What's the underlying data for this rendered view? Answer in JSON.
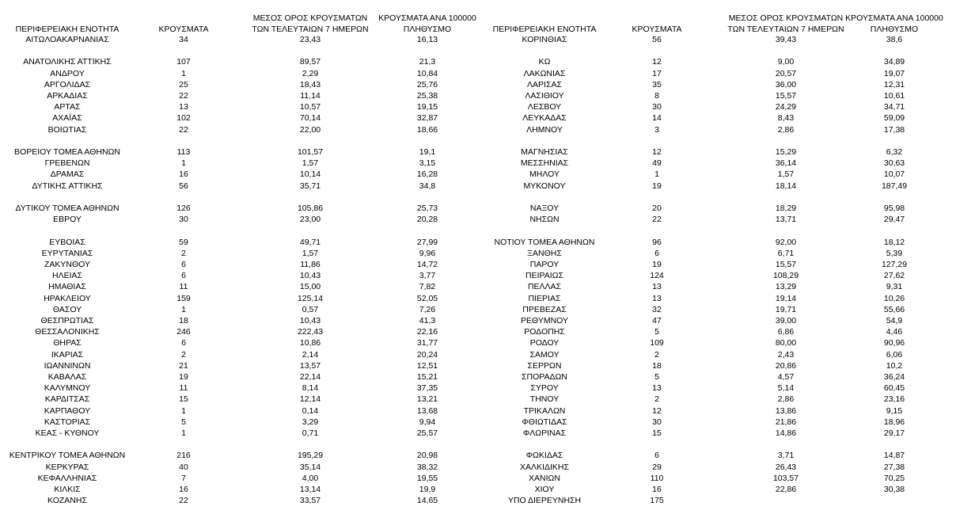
{
  "table": {
    "headers": {
      "left": [
        [
          "ΠΕΡΙΦΕΡΕΙΑΚΗ ΕΝΟΤΗΤΑ"
        ],
        [
          "ΚΡΟΥΣΜΑΤΑ"
        ],
        [
          "ΜΕΣΟΣ ΟΡΟΣ ΚΡΟΥΣΜΑΤΩΝ",
          "ΤΩΝ ΤΕΛΕΥΤΑΙΩΝ 7 ΗΜΕΡΩΝ"
        ],
        [
          "ΚΡΟΥΣΜΑΤΑ ΑΝΑ 100000",
          "ΠΛΗΘΥΣΜΟ"
        ]
      ],
      "right": [
        [
          "ΠΕΡΙΦΕΡΕΙΑΚΗ ΕΝΟΤΗΤΑ"
        ],
        [
          "ΚΡΟΥΣΜΑΤΑ"
        ],
        [
          "ΜΕΣΟΣ ΟΡΟΣ ΚΡΟΥΣΜΑΤΩΝ",
          "ΤΩΝ ΤΕΛΕΥΤΑΙΩΝ 7 ΗΜΕΡΩΝ"
        ],
        [
          "ΚΡΟΥΣΜΑΤΑ ΑΝΑ 100000",
          "ΠΛΗΘΥΣΜΟ"
        ]
      ]
    },
    "groups": [
      [
        {
          "left": [
            "ΑΙΤΩΛΟΑΚΑΡΝΑΝΙΑΣ",
            "34",
            "23,43",
            "16,13"
          ],
          "right": [
            "ΚΟΡΙΝΘΙΑΣ",
            "56",
            "39,43",
            "38,6"
          ]
        }
      ],
      [
        {
          "left": [
            "ΑΝΑΤΟΛΙΚΗΣ ΑΤΤΙΚΗΣ",
            "107",
            "89,57",
            "21,3"
          ],
          "right": [
            "ΚΩ",
            "12",
            "9,00",
            "34,89"
          ]
        },
        {
          "left": [
            "ΑΝΔΡΟΥ",
            "1",
            "2,29",
            "10,84"
          ],
          "right": [
            "ΛΑΚΩΝΙΑΣ",
            "17",
            "20,57",
            "19,07"
          ]
        },
        {
          "left": [
            "ΑΡΓΟΛΙΔΑΣ",
            "25",
            "18,43",
            "25,76"
          ],
          "right": [
            "ΛΑΡΙΣΑΣ",
            "35",
            "36,00",
            "12,31"
          ]
        },
        {
          "left": [
            "ΑΡΚΑΔΙΑΣ",
            "22",
            "11,14",
            "25,38"
          ],
          "right": [
            "ΛΑΣΙΘΙΟΥ",
            "8",
            "15,57",
            "10,61"
          ]
        },
        {
          "left": [
            "ΑΡΤΑΣ",
            "13",
            "10,57",
            "19,15"
          ],
          "right": [
            "ΛΕΣΒΟΥ",
            "30",
            "24,29",
            "34,71"
          ]
        },
        {
          "left": [
            "ΑΧΑΪΑΣ",
            "102",
            "70,14",
            "32,87"
          ],
          "right": [
            "ΛΕΥΚΑΔΑΣ",
            "14",
            "8,43",
            "59,09"
          ]
        },
        {
          "left": [
            "ΒΟΙΩΤΙΑΣ",
            "22",
            "22,00",
            "18,66"
          ],
          "right": [
            "ΛΗΜΝΟΥ",
            "3",
            "2,86",
            "17,38"
          ]
        }
      ],
      [
        {
          "left": [
            "ΒΟΡΕΙΟΥ ΤΟΜΕΑ ΑΘΗΝΩΝ",
            "113",
            "101,57",
            "19,1"
          ],
          "right": [
            "ΜΑΓΝΗΣΙΑΣ",
            "12",
            "15,29",
            "6,32"
          ]
        },
        {
          "left": [
            "ΓΡΕΒΕΝΩΝ",
            "1",
            "1,57",
            "3,15"
          ],
          "right": [
            "ΜΕΣΣΗΝΙΑΣ",
            "49",
            "36,14",
            "30,63"
          ]
        },
        {
          "left": [
            "ΔΡΑΜΑΣ",
            "16",
            "10,14",
            "16,28"
          ],
          "right": [
            "ΜΗΛΟΥ",
            "1",
            "1,57",
            "10,07"
          ]
        },
        {
          "left": [
            "ΔΥΤΙΚΗΣ ΑΤΤΙΚΗΣ",
            "56",
            "35,71",
            "34,8"
          ],
          "right": [
            "ΜΥΚΟΝΟΥ",
            "19",
            "18,14",
            "187,49"
          ]
        }
      ],
      [
        {
          "left": [
            "ΔΥΤΙΚΟΥ ΤΟΜΕΑ ΑΘΗΝΩΝ",
            "126",
            "105,86",
            "25,73"
          ],
          "right": [
            "ΝΑΞΟΥ",
            "20",
            "18,29",
            "95,98"
          ]
        },
        {
          "left": [
            "ΕΒΡΟΥ",
            "30",
            "23,00",
            "20,28"
          ],
          "right": [
            "ΝΗΣΩΝ",
            "22",
            "13,71",
            "29,47"
          ]
        }
      ],
      [
        {
          "left": [
            "ΕΥΒΟΙΑΣ",
            "59",
            "49,71",
            "27,99"
          ],
          "right": [
            "ΝΟΤΙΟΥ ΤΟΜΕΑ ΑΘΗΝΩΝ",
            "96",
            "92,00",
            "18,12"
          ]
        },
        {
          "left": [
            "ΕΥΡΥΤΑΝΙΑΣ",
            "2",
            "1,57",
            "9,96"
          ],
          "right": [
            "ΞΑΝΘΗΣ",
            "6",
            "6,71",
            "5,39"
          ]
        },
        {
          "left": [
            "ΖΑΚΥΝΘΟΥ",
            "6",
            "11,86",
            "14,72"
          ],
          "right": [
            "ΠΑΡΟΥ",
            "19",
            "15,57",
            "127,29"
          ]
        },
        {
          "left": [
            "ΗΛΕΙΑΣ",
            "6",
            "10,43",
            "3,77"
          ],
          "right": [
            "ΠΕΙΡΑΙΩΣ",
            "124",
            "108,29",
            "27,62"
          ]
        },
        {
          "left": [
            "ΗΜΑΘΙΑΣ",
            "11",
            "15,00",
            "7,82"
          ],
          "right": [
            "ΠΕΛΛΑΣ",
            "13",
            "13,29",
            "9,31"
          ]
        },
        {
          "left": [
            "ΗΡΑΚΛΕΙΟΥ",
            "159",
            "125,14",
            "52,05"
          ],
          "right": [
            "ΠΙΕΡΙΑΣ",
            "13",
            "19,14",
            "10,26"
          ]
        },
        {
          "left": [
            "ΘΑΣΟΥ",
            "1",
            "0,57",
            "7,26"
          ],
          "right": [
            "ΠΡΕΒΕΖΑΣ",
            "32",
            "19,71",
            "55,66"
          ]
        },
        {
          "left": [
            "ΘΕΣΠΡΩΤΙΑΣ",
            "18",
            "10,43",
            "41,3"
          ],
          "right": [
            "ΡΕΘΥΜΝΟΥ",
            "47",
            "39,00",
            "54,9"
          ]
        },
        {
          "left": [
            "ΘΕΣΣΑΛΟΝΙΚΗΣ",
            "246",
            "222,43",
            "22,16"
          ],
          "right": [
            "ΡΟΔΟΠΗΣ",
            "5",
            "6,86",
            "4,46"
          ]
        },
        {
          "left": [
            "ΘΗΡΑΣ",
            "6",
            "10,86",
            "31,77"
          ],
          "right": [
            "ΡΟΔΟΥ",
            "109",
            "80,00",
            "90,96"
          ]
        },
        {
          "left": [
            "ΙΚΑΡΙΑΣ",
            "2",
            "2,14",
            "20,24"
          ],
          "right": [
            "ΣΑΜΟΥ",
            "2",
            "2,43",
            "6,06"
          ]
        },
        {
          "left": [
            "ΙΩΑΝΝΙΝΩΝ",
            "21",
            "13,57",
            "12,51"
          ],
          "right": [
            "ΣΕΡΡΩΝ",
            "18",
            "20,86",
            "10,2"
          ]
        },
        {
          "left": [
            "ΚΑΒΑΛΑΣ",
            "19",
            "22,14",
            "15,21"
          ],
          "right": [
            "ΣΠΟΡΑΔΩΝ",
            "5",
            "4,57",
            "36,24"
          ]
        },
        {
          "left": [
            "ΚΑΛΥΜΝΟΥ",
            "11",
            "8,14",
            "37,35"
          ],
          "right": [
            "ΣΥΡΟΥ",
            "13",
            "5,14",
            "60,45"
          ]
        },
        {
          "left": [
            "ΚΑΡΔΙΤΣΑΣ",
            "15",
            "12,14",
            "13,21"
          ],
          "right": [
            "ΤΗΝΟΥ",
            "2",
            "2,86",
            "23,16"
          ]
        },
        {
          "left": [
            "ΚΑΡΠΑΘΟΥ",
            "1",
            "0,14",
            "13,68"
          ],
          "right": [
            "ΤΡΙΚΑΛΩΝ",
            "12",
            "13,86",
            "9,15"
          ]
        },
        {
          "left": [
            "ΚΑΣΤΟΡΙΑΣ",
            "5",
            "3,29",
            "9,94"
          ],
          "right": [
            "ΦΘΙΩΤΙΔΑΣ",
            "30",
            "21,86",
            "18,96"
          ]
        },
        {
          "left": [
            "ΚΕΑΣ - ΚΥΘΝΟΥ",
            "1",
            "0,71",
            "25,57"
          ],
          "right": [
            "ΦΛΩΡΙΝΑΣ",
            "15",
            "14,86",
            "29,17"
          ]
        }
      ],
      [
        {
          "left": [
            "ΚΕΝΤΡΙΚΟΥ ΤΟΜΕΑ ΑΘΗΝΩΝ",
            "216",
            "195,29",
            "20,98"
          ],
          "right": [
            "ΦΩΚΙΔΑΣ",
            "6",
            "3,71",
            "14,87"
          ]
        },
        {
          "left": [
            "ΚΕΡΚΥΡΑΣ",
            "40",
            "35,14",
            "38,32"
          ],
          "right": [
            "ΧΑΛΚΙΔΙΚΗΣ",
            "29",
            "26,43",
            "27,38"
          ]
        },
        {
          "left": [
            "ΚΕΦΑΛΛΗΝΙΑΣ",
            "7",
            "4,00",
            "19,55"
          ],
          "right": [
            "ΧΑΝΙΩΝ",
            "110",
            "103,57",
            "70,25"
          ]
        },
        {
          "left": [
            "ΚΙΛΚΙΣ",
            "16",
            "13,14",
            "19,9"
          ],
          "right": [
            "ΧΙΟΥ",
            "16",
            "22,86",
            "30,38"
          ]
        },
        {
          "left": [
            "ΚΟΖΑΝΗΣ",
            "22",
            "33,57",
            "14,65"
          ],
          "right": [
            "ΥΠΟ ΔΙΕΡΕΥΝΗΣΗ",
            "175"
          ]
        }
      ]
    ]
  }
}
